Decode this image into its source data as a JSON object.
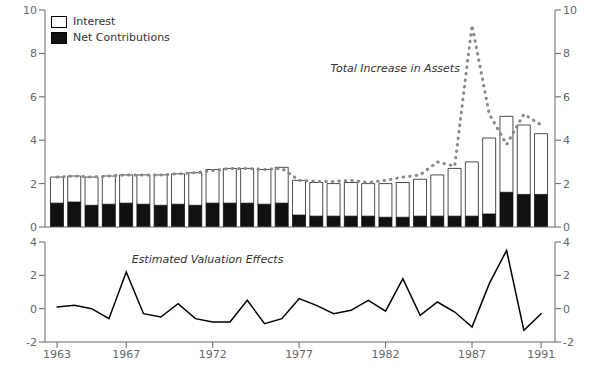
{
  "chart_data": [
    {
      "type": "bar",
      "stacked": true,
      "x": [
        1963,
        1964,
        1965,
        1966,
        1967,
        1968,
        1969,
        1970,
        1971,
        1972,
        1973,
        1974,
        1975,
        1976,
        1977,
        1978,
        1979,
        1980,
        1981,
        1982,
        1983,
        1984,
        1985,
        1986,
        1987,
        1988,
        1989,
        1990,
        1991
      ],
      "xlim": [
        1962.3,
        1991.8
      ],
      "ylim": [
        0,
        10
      ],
      "yticks": [
        0,
        2,
        4,
        6,
        8,
        10
      ],
      "y2lim": [
        0,
        10
      ],
      "y2ticks": [
        0,
        2,
        4,
        6,
        8,
        10
      ],
      "tick_labels": "y",
      "grid": false,
      "legend": "upper left",
      "annotations": [
        {
          "text": "Total Increase in Assets"
        }
      ],
      "series": [
        {
          "name": "Net Contributions",
          "type": "bar",
          "color": "#111111",
          "values": [
            1.1,
            1.15,
            1.0,
            1.05,
            1.1,
            1.05,
            1.0,
            1.05,
            1.0,
            1.1,
            1.1,
            1.1,
            1.05,
            1.1,
            0.55,
            0.5,
            0.5,
            0.5,
            0.5,
            0.45,
            0.45,
            0.5,
            0.5,
            0.5,
            0.5,
            0.6,
            1.6,
            1.5,
            1.5
          ]
        },
        {
          "name": "Interest",
          "type": "bar",
          "color": "#ffffff",
          "values": [
            1.2,
            1.2,
            1.3,
            1.3,
            1.3,
            1.35,
            1.4,
            1.4,
            1.5,
            1.55,
            1.6,
            1.6,
            1.6,
            1.65,
            1.6,
            1.55,
            1.5,
            1.55,
            1.5,
            1.55,
            1.6,
            1.7,
            1.9,
            2.2,
            2.5,
            3.5,
            3.5,
            3.2,
            2.8
          ]
        },
        {
          "type": "line",
          "color": "#888888",
          "line_style": "dotted",
          "values": [
            2.3,
            2.35,
            2.3,
            2.35,
            2.4,
            2.4,
            2.4,
            2.45,
            2.5,
            2.6,
            2.7,
            2.7,
            2.65,
            2.7,
            2.15,
            2.1,
            2.1,
            2.15,
            2.05,
            2.15,
            2.3,
            2.4,
            3.0,
            2.8,
            9.3,
            5.2,
            3.8,
            5.2,
            4.7
          ]
        }
      ]
    },
    {
      "type": "line",
      "x": [
        1963,
        1964,
        1965,
        1966,
        1967,
        1968,
        1969,
        1970,
        1971,
        1972,
        1973,
        1974,
        1975,
        1976,
        1977,
        1978,
        1979,
        1980,
        1981,
        1982,
        1983,
        1984,
        1985,
        1986,
        1987,
        1988,
        1989,
        1990,
        1991
      ],
      "xlim": [
        1962.3,
        1991.8
      ],
      "xticks": [
        1963,
        1967,
        1972,
        1977,
        1982,
        1987,
        1991
      ],
      "ylim": [
        -2,
        4
      ],
      "yticks": [
        -2,
        0,
        2,
        4
      ],
      "y2lim": [
        -2,
        4
      ],
      "y2ticks": [
        -2,
        0,
        2,
        4
      ],
      "grid": false,
      "annotations": [
        {
          "text": "Estimated Valuation Effects"
        }
      ],
      "series": [
        {
          "type": "line",
          "color": "#000000",
          "line_style": "solid",
          "values": [
            0.1,
            0.2,
            0.0,
            -0.6,
            2.2,
            -0.3,
            -0.5,
            0.3,
            -0.6,
            -0.8,
            -0.8,
            0.5,
            -0.9,
            -0.6,
            0.6,
            0.2,
            -0.3,
            -0.1,
            0.5,
            -0.15,
            1.8,
            -0.4,
            0.4,
            -0.2,
            -1.1,
            1.5,
            3.5,
            -1.3,
            -0.3
          ]
        }
      ]
    }
  ]
}
